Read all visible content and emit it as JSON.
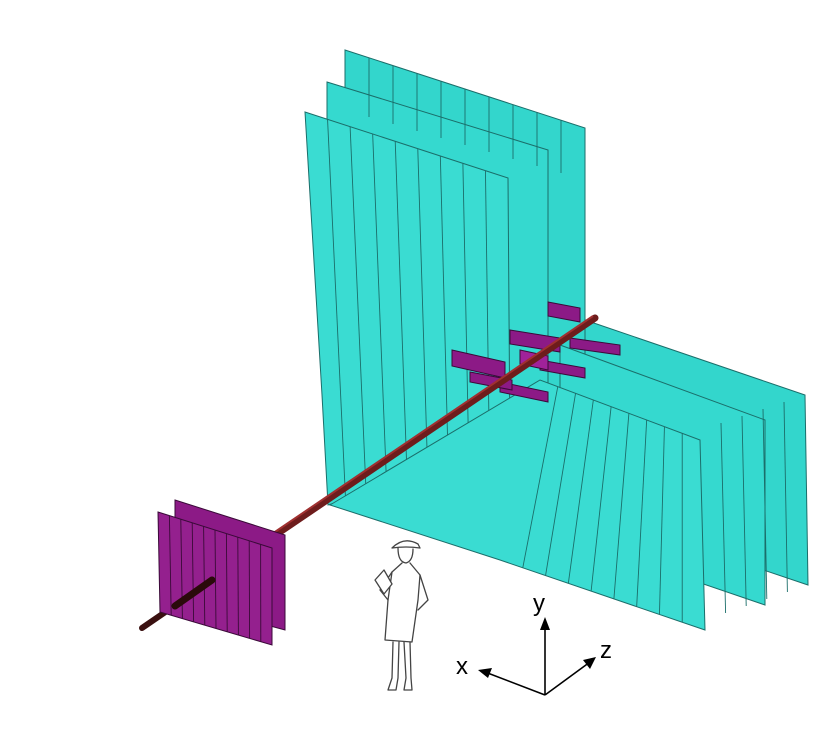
{
  "axes": {
    "x_label": "x",
    "y_label": "y",
    "z_label": "z"
  },
  "colors": {
    "panel_fill": "#33d6cc",
    "panel_stroke": "#1b6e6a",
    "magnet_fill": "#8c1a86",
    "magnet_stroke": "#3a0a38",
    "beamline": "#6e1c1c",
    "person_stroke": "#444444"
  },
  "icons": {
    "person": "human-figure-icon"
  }
}
